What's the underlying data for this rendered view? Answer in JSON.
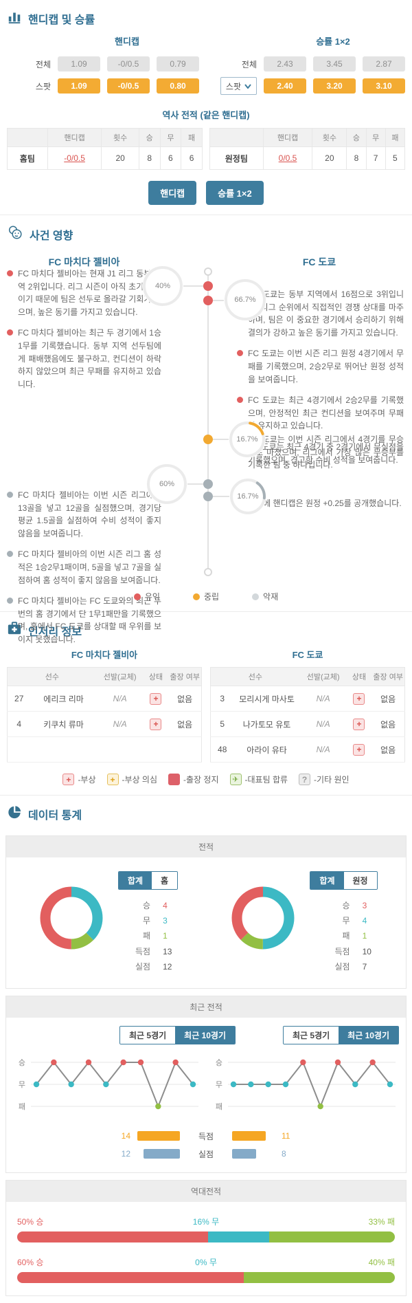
{
  "colors": {
    "accent": "#3e7d9e",
    "win": "#e25f5f",
    "draw": "#3cb9c4",
    "loss": "#92bf43",
    "neutral": "#f2a931",
    "negative": "#a6b0b6",
    "negative_light": "#d3d8db",
    "goal_bar": "#f5a623",
    "concede_bar": "#84aac8"
  },
  "odds": {
    "title": "핸디캡 및 승률",
    "handicap": {
      "title": "핸디캡",
      "all_label": "전체",
      "all": [
        "1.09",
        "-0/0.5",
        "0.79"
      ],
      "spot_label": "스팟",
      "spot": [
        "1.09",
        "-0/0.5",
        "0.80"
      ]
    },
    "winrate": {
      "title": "승률 1×2",
      "all_label": "전체",
      "all": [
        "2.43",
        "3.45",
        "2.87"
      ],
      "spot_label": "스팟",
      "spot": [
        "2.40",
        "3.20",
        "3.10"
      ]
    },
    "history_title": "역사 전적 (같은 핸디캡)",
    "history_headers": [
      "핸디캡",
      "횟수",
      "승",
      "무",
      "패"
    ],
    "history_rows": [
      {
        "team": "홈팀",
        "handicap": "-0/0.5",
        "count": "20",
        "win": "8",
        "draw": "6",
        "loss": "6"
      },
      {
        "team": "원정팀",
        "handicap": "0/0.5",
        "count": "20",
        "win": "8",
        "draw": "7",
        "loss": "5"
      }
    ],
    "buttons": [
      "핸디캡",
      "승률 1×2"
    ]
  },
  "events": {
    "title": "사건 영향",
    "home_team": "FC 마치다 젤비아",
    "away_team": "FC 도쿄",
    "bullets": {
      "home_pos": [
        "FC 마치다 젤비아는 현재 J1 리그 동부 지역 2위입니다. 리그 시즌이 아직 초기 단계이기 때문에 팀은 선두로 올라갈 기회가 있으며, 높은 동기를 가지고 있습니다.",
        "FC 마치다 젤비아는 최근 두 경기에서 1승1무를 기록했습니다. 동부 지역 선두팀에게 패배했음에도 불구하고, 컨디션이 하락하지 않았으며 최근 무패를 유지하고 있습니다."
      ],
      "home_neg": [
        "FC 마치다 젤비아는 이번 시즌 리그에서 13골을 넣고 12골을 실점했으며, 경기당 평균 1.5골을 실점하여 수비 성적이 좋지 않음을 보여줍니다.",
        "FC 마치다 젤비아의 이번 시즌 리그 홈 성적은 1승2무1패이며, 5골을 넣고 7골을 실점하여 홈 성적이 좋지 않음을 보여줍니다.",
        "FC 마치다 젤비아는 FC 도쿄와의 최근 두 번의 홈 경기에서 단 1무1패만을 기록했으며, 홈에서 FC 도쿄를 상대할 때 우위를 보이지 못했습니다."
      ],
      "away_pos": [
        "FC 도쿄는 동부 지역에서 16점으로 3위입니다. 리그 순위에서 직접적인 경쟁 상대를 마주하며, 팀은 이 중요한 경기에서 승리하기 위해 결의가 강하고 높은 동기를 가지고 있습니다.",
        "FC 도쿄는 이번 시즌 리그 원정 4경기에서 무패를 기록했으며, 2승2무로 뛰어난 원정 성적을 보여줍니다.",
        "FC 도쿄는 최근 4경기에서 2승2무를 기록했으며, 안정적인 최근 컨디션을 보여주며 무패를 유지하고 있습니다.",
        "FC 도쿄는 최근 4경기 중 2경기에서 무실점을 기록했으며, 견고한 수비 성적을 보여줍니다."
      ],
      "away_neu": [
        "FC 도쿄는 이번 시즌 리그에서 4경기를 무승부로 마쳤으며, 리그에서 가장 많은 무승부를 기록한 팀 중 하나입니다."
      ],
      "away_neg": [
        "이번에 핸디캡은 원정 +0.25를 공개했습니다."
      ]
    },
    "donuts": {
      "home_pos": {
        "label": "40%",
        "pct": 40,
        "color": "#e25f5f",
        "ccw": true,
        "rot": 0
      },
      "away_pos": {
        "label": "66.7%",
        "pct": 66.7,
        "color": "#e25f5f",
        "ccw": true,
        "rot": 0
      },
      "away_neu": {
        "label": "16.7%",
        "pct": 16.7,
        "color": "#f2a931",
        "ccw": false,
        "rot": 10
      },
      "home_neg": {
        "label": "60%",
        "pct": 60,
        "color": "#a6b0b6",
        "ccw": true,
        "rot": 0
      },
      "away_neg": {
        "label": "16.7%",
        "pct": 16.7,
        "color": "#a6b0b6",
        "ccw": false,
        "rot": 35
      }
    },
    "legend": [
      {
        "label": "유익",
        "color": "#e25f5f"
      },
      {
        "label": "중립",
        "color": "#f2a931"
      },
      {
        "label": "악재",
        "color": "#d3d8db"
      }
    ]
  },
  "injury": {
    "title": "인저리 정보",
    "home_team": "FC 마치다 젤비아",
    "away_team": "FC 도쿄",
    "headers": [
      "선수",
      "선발(교체)",
      "상태",
      "출장 여부"
    ],
    "home_rows": [
      {
        "num": "27",
        "name": "에리크 리마",
        "start": "N/A",
        "status": "injury",
        "play": "없음"
      },
      {
        "num": "4",
        "name": "키쿠치 류마",
        "start": "N/A",
        "status": "injury",
        "play": "없음"
      }
    ],
    "away_rows": [
      {
        "num": "3",
        "name": "모리시게 마사토",
        "start": "N/A",
        "status": "injury",
        "play": "없음"
      },
      {
        "num": "5",
        "name": "나가토모 유토",
        "start": "N/A",
        "status": "injury",
        "play": "없음"
      },
      {
        "num": "48",
        "name": "아라이 유타",
        "start": "N/A",
        "status": "injury",
        "play": "없음"
      }
    ],
    "legend": [
      {
        "type": "plus-red",
        "glyph": "+",
        "label": "-부상"
      },
      {
        "type": "plus-yellow",
        "glyph": "+",
        "label": "-부상 의심"
      },
      {
        "type": "solid-red",
        "glyph": "",
        "label": "-출장 정지"
      },
      {
        "type": "plane-green",
        "glyph": "✈",
        "label": "-대표팀 합류"
      },
      {
        "type": "question-gray",
        "glyph": "?",
        "label": "-기타 원인"
      }
    ]
  },
  "stats": {
    "title": "데이터 통계",
    "record": {
      "header": "전적",
      "labels": [
        "승",
        "무",
        "패",
        "득점",
        "실점"
      ],
      "home": {
        "toggle": [
          "합계",
          "홈"
        ],
        "win": 4,
        "draw": 3,
        "loss": 1,
        "gf": 13,
        "ga": 12,
        "segments": [
          {
            "v": 3,
            "c": "draw"
          },
          {
            "v": 1,
            "c": "loss"
          },
          {
            "v": 4,
            "c": "win"
          }
        ]
      },
      "away": {
        "toggle": [
          "합계",
          "원정"
        ],
        "win": 3,
        "draw": 4,
        "loss": 1,
        "gf": 10,
        "ga": 7,
        "segments": [
          {
            "v": 4,
            "c": "draw"
          },
          {
            "v": 1,
            "c": "loss"
          },
          {
            "v": 3,
            "c": "win"
          }
        ]
      }
    },
    "recent": {
      "header": "최근 전적",
      "toggles": [
        "최근 5경기",
        "최근 10경기"
      ],
      "ylabels": [
        "승",
        "무",
        "패"
      ],
      "home_results": [
        "D",
        "W",
        "D",
        "W",
        "D",
        "W",
        "W",
        "L",
        "W",
        "D"
      ],
      "away_results": [
        "D",
        "D",
        "D",
        "D",
        "W",
        "L",
        "W",
        "D",
        "W",
        "D"
      ],
      "bars": {
        "gf_label": "득점",
        "ga_label": "실점",
        "home_gf": 14,
        "home_ga": 12,
        "away_gf": 11,
        "away_ga": 8,
        "max": 14
      }
    },
    "h2h": {
      "header": "역대전적",
      "bars": [
        {
          "win": 50,
          "draw": 16,
          "loss": 33,
          "win_label": "50% 승",
          "draw_label": "16% 무",
          "loss_label": "33% 패"
        },
        {
          "win": 60,
          "draw": 0,
          "loss": 40,
          "win_label": "60% 승",
          "draw_label": "0% 무",
          "loss_label": "40% 패"
        }
      ]
    }
  }
}
